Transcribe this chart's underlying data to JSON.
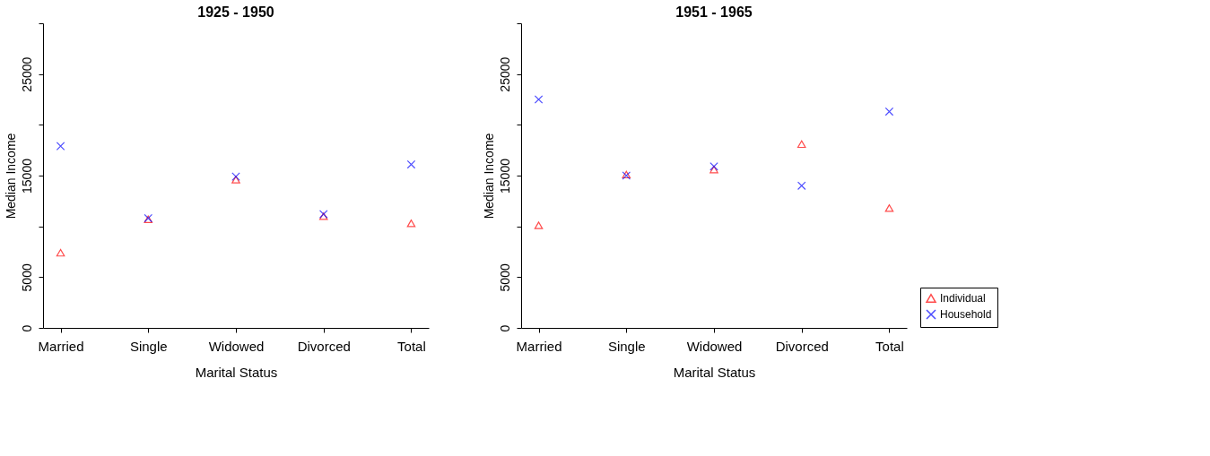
{
  "chart_data": [
    {
      "type": "scatter",
      "title": "1925 - 1950",
      "xlabel": "Marital Status",
      "ylabel": "Median Income",
      "categories": [
        "Married",
        "Single",
        "Widowed",
        "Divorced",
        "Total"
      ],
      "series": [
        {
          "color": "#ff0000",
          "marker": "triangle",
          "values": [
            7400,
            10700,
            14600,
            11000,
            10300
          ]
        },
        {
          "color": "#0000ff",
          "marker": "cross",
          "values": [
            17900,
            10800,
            14900,
            11200,
            16100
          ]
        }
      ],
      "ylim": [
        0,
        30000
      ],
      "yticks": [
        0,
        5000,
        {
          "value": 10000,
          "label": null
        },
        15000,
        {
          "value": 20000,
          "label": null
        },
        25000,
        {
          "value": 30000,
          "label": null
        }
      ],
      "grid": false,
      "legend": false
    },
    {
      "type": "scatter",
      "title": "1951 - 1965",
      "xlabel": "Marital Status",
      "ylabel": "Median Income",
      "categories": [
        "Married",
        "Single",
        "Widowed",
        "Divorced",
        "Total"
      ],
      "series": [
        {
          "name": "Individual",
          "color": "#ff0000",
          "marker": "triangle",
          "values": [
            10100,
            15100,
            15600,
            18100,
            11800
          ]
        },
        {
          "name": "Household",
          "color": "#0000ff",
          "marker": "cross",
          "values": [
            22500,
            15000,
            15900,
            14000,
            21300
          ]
        }
      ],
      "ylim": [
        0,
        30000
      ],
      "yticks": [
        0,
        5000,
        {
          "value": 10000,
          "label": null
        },
        15000,
        {
          "value": 20000,
          "label": null
        },
        25000,
        {
          "value": 30000,
          "label": null
        }
      ],
      "grid": false,
      "legend": "bottom right"
    }
  ]
}
